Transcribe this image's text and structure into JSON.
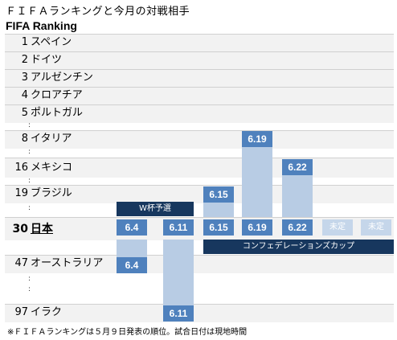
{
  "title": "ＦＩＦＡランキングと今月の対戦相手",
  "heading": "FIFA Ranking",
  "rankings": [
    {
      "rank": "1",
      "team": "スペイン"
    },
    {
      "rank": "2",
      "team": "ドイツ"
    },
    {
      "rank": "3",
      "team": "アルゼンチン"
    },
    {
      "rank": "4",
      "team": "クロアチア"
    },
    {
      "rank": "5",
      "team": "ポルトガル"
    },
    {
      "rank": "8",
      "team": "イタリア"
    },
    {
      "rank": "16",
      "team": "メキシコ"
    },
    {
      "rank": "19",
      "team": "ブラジル"
    },
    {
      "rank": "30",
      "team": "日本"
    },
    {
      "rank": "47",
      "team": "オーストラリア"
    },
    {
      "rank": "97",
      "team": "イラク"
    }
  ],
  "ellipsis": ":",
  "banner_wcq": "W杯予選",
  "banner_confed": "コンフェデレーションズカップ",
  "japan_dates": [
    "6.4",
    "6.11",
    "6.15",
    "6.19",
    "6.22",
    "未定",
    "未定"
  ],
  "opponent_dates": {
    "australia": "6.4",
    "iraq": "6.11",
    "brazil": "6.15",
    "italy": "6.19",
    "mexico": "6.22"
  },
  "footnote": "※ＦＩＦＡランキングは５月９日発表の順位。試合日付は現地時間",
  "colors": {
    "chip": "#4f81bd",
    "column": "#b8cce4",
    "band": "#17375e",
    "pending": "#c5d6ea",
    "row": "#f2f2f2"
  }
}
